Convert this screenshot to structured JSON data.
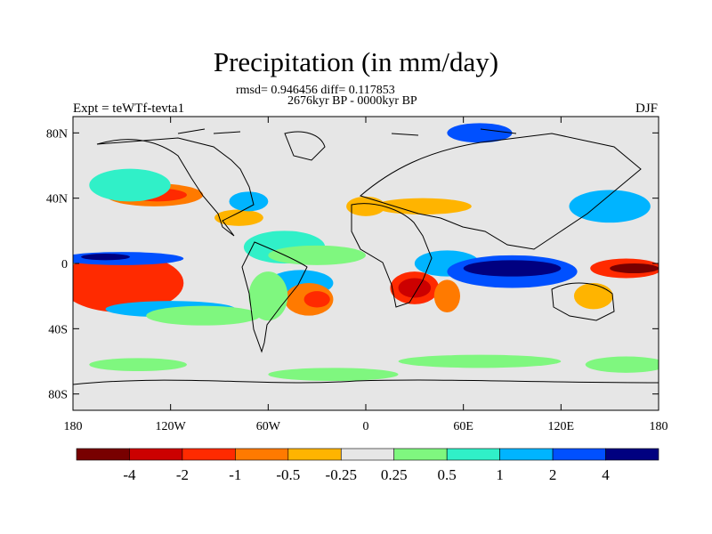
{
  "header": {
    "title": "Precipitation (in mm/day)",
    "stats": "rmsd= 0.946456 diff= 0.117853",
    "period": "2676kyr BP - 0000kyr BP",
    "experiment": "Expt = teWTf-tevta1",
    "season": "DJF"
  },
  "axes": {
    "lat_ticks": [
      "80N",
      "40N",
      "0",
      "40S",
      "80S"
    ],
    "lon_ticks": [
      "180",
      "120W",
      "60W",
      "0",
      "60E",
      "120E",
      "180"
    ]
  },
  "colorbar": {
    "levels": [
      "-4",
      "-2",
      "-1",
      "-0.5",
      "-0.25",
      "0.25",
      "0.5",
      "1",
      "2",
      "4"
    ],
    "colors": [
      "#780000",
      "#cc0000",
      "#ff2a00",
      "#ff7a00",
      "#ffb400",
      "#e6e6e6",
      "#7ff77f",
      "#30f0c8",
      "#00b4ff",
      "#0050ff",
      "#000080"
    ]
  },
  "map": {
    "background": "#e6e6e6",
    "lon_range": [
      -180,
      180
    ],
    "lat_range": [
      -90,
      90
    ],
    "anomaly_regions": [
      {
        "lon": -155,
        "lat": -12,
        "rx": 26,
        "ry": 12,
        "level": 0
      },
      {
        "lon": -150,
        "lat": -12,
        "rx": 38,
        "ry": 18,
        "level": 2
      },
      {
        "lon": -150,
        "lat": 3,
        "rx": 38,
        "ry": 4,
        "level": 9
      },
      {
        "lon": -160,
        "lat": 4,
        "rx": 15,
        "ry": 2,
        "level": 10
      },
      {
        "lon": -120,
        "lat": -28,
        "rx": 40,
        "ry": 5,
        "level": 8
      },
      {
        "lon": -100,
        "lat": -32,
        "rx": 35,
        "ry": 6,
        "level": 6
      },
      {
        "lon": -130,
        "lat": 42,
        "rx": 30,
        "ry": 7,
        "level": 3
      },
      {
        "lon": -128,
        "lat": 42,
        "rx": 18,
        "ry": 4,
        "level": 2
      },
      {
        "lon": -145,
        "lat": 48,
        "rx": 25,
        "ry": 10,
        "level": 7
      },
      {
        "lon": -78,
        "lat": 28,
        "rx": 15,
        "ry": 5,
        "level": 4
      },
      {
        "lon": -72,
        "lat": 38,
        "rx": 12,
        "ry": 6,
        "level": 8
      },
      {
        "lon": -50,
        "lat": 10,
        "rx": 25,
        "ry": 10,
        "level": 7
      },
      {
        "lon": -30,
        "lat": 5,
        "rx": 30,
        "ry": 6,
        "level": 6
      },
      {
        "lon": -40,
        "lat": -12,
        "rx": 20,
        "ry": 8,
        "level": 8
      },
      {
        "lon": -35,
        "lat": -22,
        "rx": 15,
        "ry": 10,
        "level": 3
      },
      {
        "lon": -30,
        "lat": -22,
        "rx": 8,
        "ry": 5,
        "level": 2
      },
      {
        "lon": -60,
        "lat": -20,
        "rx": 12,
        "ry": 15,
        "level": 6
      },
      {
        "lon": 0,
        "lat": 35,
        "rx": 12,
        "ry": 6,
        "level": 4
      },
      {
        "lon": 35,
        "lat": 35,
        "rx": 30,
        "ry": 5,
        "level": 4
      },
      {
        "lon": 25,
        "lat": 8,
        "rx": 20,
        "ry": 5,
        "level": 5
      },
      {
        "lon": 30,
        "lat": -15,
        "rx": 15,
        "ry": 10,
        "level": 2
      },
      {
        "lon": 30,
        "lat": -15,
        "rx": 10,
        "ry": 6,
        "level": 1
      },
      {
        "lon": 50,
        "lat": -20,
        "rx": 8,
        "ry": 10,
        "level": 3
      },
      {
        "lon": 50,
        "lat": 0,
        "rx": 20,
        "ry": 8,
        "level": 8
      },
      {
        "lon": 90,
        "lat": -5,
        "rx": 40,
        "ry": 10,
        "level": 9
      },
      {
        "lon": 90,
        "lat": -3,
        "rx": 30,
        "ry": 5,
        "level": 10
      },
      {
        "lon": 160,
        "lat": -3,
        "rx": 22,
        "ry": 6,
        "level": 2
      },
      {
        "lon": 165,
        "lat": -3,
        "rx": 15,
        "ry": 3,
        "level": 0
      },
      {
        "lon": 140,
        "lat": -20,
        "rx": 12,
        "ry": 8,
        "level": 4
      },
      {
        "lon": 150,
        "lat": 35,
        "rx": 25,
        "ry": 10,
        "level": 8
      },
      {
        "lon": 70,
        "lat": 80,
        "rx": 20,
        "ry": 6,
        "level": 9
      },
      {
        "lon": -140,
        "lat": -62,
        "rx": 30,
        "ry": 4,
        "level": 6
      },
      {
        "lon": -20,
        "lat": -68,
        "rx": 40,
        "ry": 4,
        "level": 6
      },
      {
        "lon": 70,
        "lat": -60,
        "rx": 50,
        "ry": 4,
        "level": 6
      },
      {
        "lon": 160,
        "lat": -62,
        "rx": 25,
        "ry": 5,
        "level": 6
      }
    ]
  }
}
